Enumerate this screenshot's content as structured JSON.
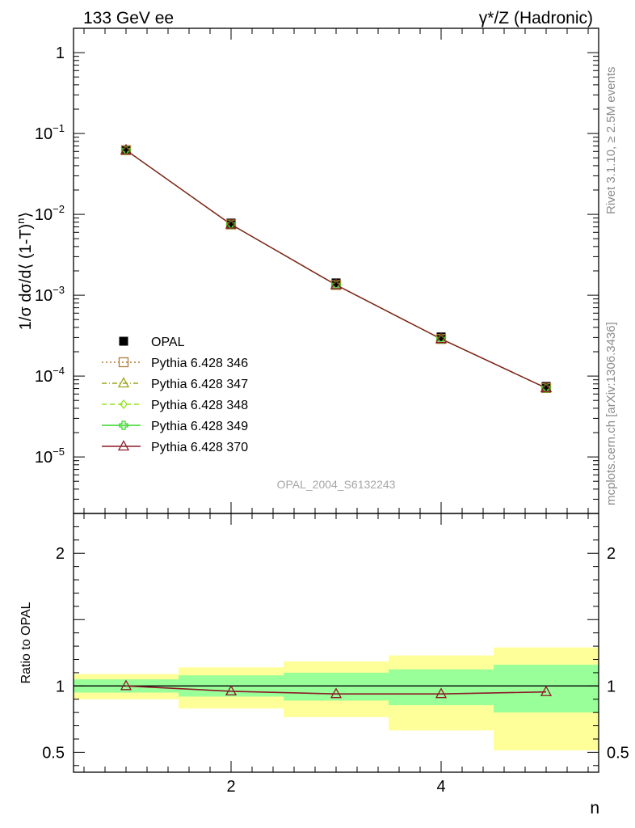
{
  "header": {
    "left": "133 GeV ee",
    "right": "γ*/Z (Hadronic)"
  },
  "side_text": {
    "rivet": "Rivet 3.1.10, ≥ 2.5M events",
    "mcplots": "mcplots.cern.ch [arXiv:1306.3436]"
  },
  "watermark": "OPAL_2004_S6132243",
  "ratio_ylabel": "Ratio to OPAL",
  "colors": {
    "green_band": "#99ff99",
    "yellow_band": "#ffff99",
    "data": "#000000"
  },
  "chart_data": [
    {
      "type": "scatter",
      "y_scale": "log",
      "ylabel_parts": {
        "a": "1/σ dσ/d⟨ (1-T)",
        "sup": "n",
        "b": "⟩"
      },
      "ylim": [
        2e-06,
        2
      ],
      "xlim": [
        0.5,
        5.5
      ],
      "y_ticks": [
        {
          "value": 1,
          "base": "1",
          "exp": ""
        },
        {
          "value": 0.1,
          "base": "10",
          "exp": "−1"
        },
        {
          "value": 0.01,
          "base": "10",
          "exp": "−2"
        },
        {
          "value": 0.001,
          "base": "10",
          "exp": "−3"
        },
        {
          "value": 0.0001,
          "base": "10",
          "exp": "−4"
        },
        {
          "value": 1e-05,
          "base": "10",
          "exp": "−5"
        }
      ],
      "legend_position": "lower-left",
      "x": [
        1,
        2,
        3,
        4,
        5
      ],
      "series": [
        {
          "name": "OPAL",
          "marker": "square-filled",
          "color": "#000000",
          "line": "none",
          "values": [
            0.0625,
            0.0078,
            0.00142,
            0.000305,
            7.45e-05
          ]
        },
        {
          "name": "Pythia 6.428 346",
          "marker": "square-open",
          "color": "#b07b39",
          "line": "dotted",
          "values": [
            0.0622,
            0.0075,
            0.00134,
            0.000288,
            7.12e-05
          ]
        },
        {
          "name": "Pythia 6.428 347",
          "marker": "triangle-open",
          "color": "#9aa317",
          "line": "dashdot",
          "values": [
            0.0622,
            0.0075,
            0.00134,
            0.000288,
            7.12e-05
          ]
        },
        {
          "name": "Pythia 6.428 348",
          "marker": "diamond-open",
          "color": "#92e21d",
          "line": "dashed",
          "values": [
            0.0622,
            0.0075,
            0.00134,
            0.000288,
            7.12e-05
          ]
        },
        {
          "name": "Pythia 6.428 349",
          "marker": "cross-open",
          "color": "#38d62a",
          "line": "solid",
          "values": [
            0.0622,
            0.0075,
            0.00134,
            0.000288,
            7.12e-05
          ]
        },
        {
          "name": "Pythia 6.428 370",
          "marker": "triangle-open",
          "color": "#8c1a27",
          "line": "solid",
          "values": [
            0.0622,
            0.0075,
            0.00134,
            0.000288,
            7.12e-05
          ]
        }
      ]
    },
    {
      "type": "line",
      "ylabel": "Ratio to OPAL",
      "xlabel": "n",
      "ylim": [
        0.35,
        2.3
      ],
      "xlim": [
        0.5,
        5.5
      ],
      "y_tick_labels": [
        {
          "value": 0.5,
          "label": "0.5"
        },
        {
          "value": 1,
          "label": "1"
        },
        {
          "value": 2,
          "label": "2"
        }
      ],
      "x_tick_labels": [
        {
          "value": 2,
          "label": "2"
        },
        {
          "value": 4,
          "label": "4"
        }
      ],
      "x": [
        1,
        2,
        3,
        4,
        5
      ],
      "bins": [
        [
          0.5,
          1.5
        ],
        [
          1.5,
          2.5
        ],
        [
          2.5,
          3.5
        ],
        [
          3.5,
          4.5
        ],
        [
          4.5,
          5.5
        ]
      ],
      "green_band": [
        [
          0.95,
          1.05
        ],
        [
          0.92,
          1.08
        ],
        [
          0.89,
          1.1
        ],
        [
          0.855,
          1.125
        ],
        [
          0.8,
          1.16
        ]
      ],
      "yellow_band": [
        [
          0.9,
          1.09
        ],
        [
          0.83,
          1.14
        ],
        [
          0.765,
          1.185
        ],
        [
          0.665,
          1.23
        ],
        [
          0.515,
          1.29
        ]
      ],
      "reference": 1,
      "series": [
        {
          "name": "Pythia 6.428 370",
          "color": "#8c1a27",
          "marker": "triangle-open",
          "values": [
            1.0,
            0.96,
            0.94,
            0.94,
            0.955
          ]
        }
      ]
    }
  ]
}
